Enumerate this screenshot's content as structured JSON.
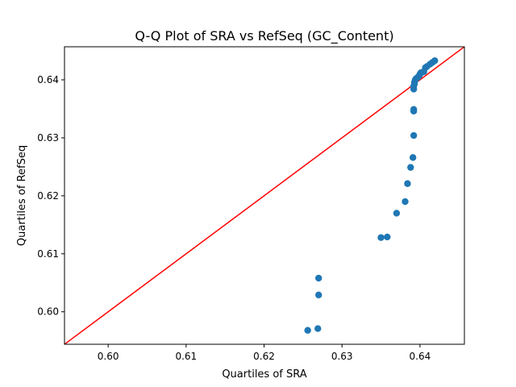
{
  "chart_data": {
    "type": "scatter",
    "title": "Q-Q Plot of SRA vs RefSeq (GC_Content)",
    "xlabel": "Quartiles of SRA",
    "ylabel": "Quartiles of RefSeq",
    "xlim": [
      0.5944,
      0.6457
    ],
    "ylim": [
      0.5944,
      0.6457
    ],
    "xticks": [
      0.6,
      0.61,
      0.62,
      0.63,
      0.64
    ],
    "yticks": [
      0.6,
      0.61,
      0.62,
      0.63,
      0.64
    ],
    "xtick_labels": [
      "0.60",
      "0.61",
      "0.62",
      "0.63",
      "0.64"
    ],
    "ytick_labels": [
      "0.60",
      "0.61",
      "0.62",
      "0.63",
      "0.64"
    ],
    "grid": false,
    "legend": "none",
    "point_color": "#1f77b4",
    "reference_line": {
      "type": "y=x",
      "color": "#ff0000"
    },
    "points": [
      {
        "x": 0.6256,
        "y": 0.5968
      },
      {
        "x": 0.6269,
        "y": 0.5971
      },
      {
        "x": 0.627,
        "y": 0.6029
      },
      {
        "x": 0.627,
        "y": 0.6058
      },
      {
        "x": 0.635,
        "y": 0.6128
      },
      {
        "x": 0.6358,
        "y": 0.6129
      },
      {
        "x": 0.637,
        "y": 0.617
      },
      {
        "x": 0.6381,
        "y": 0.619
      },
      {
        "x": 0.6384,
        "y": 0.6221
      },
      {
        "x": 0.6388,
        "y": 0.6249
      },
      {
        "x": 0.6391,
        "y": 0.6266
      },
      {
        "x": 0.6392,
        "y": 0.6304
      },
      {
        "x": 0.6392,
        "y": 0.6346
      },
      {
        "x": 0.6392,
        "y": 0.6349
      },
      {
        "x": 0.6392,
        "y": 0.6384
      },
      {
        "x": 0.6392,
        "y": 0.6389
      },
      {
        "x": 0.6393,
        "y": 0.6393
      },
      {
        "x": 0.6393,
        "y": 0.6396
      },
      {
        "x": 0.6394,
        "y": 0.64
      },
      {
        "x": 0.6395,
        "y": 0.6402
      },
      {
        "x": 0.6397,
        "y": 0.6404
      },
      {
        "x": 0.6399,
        "y": 0.6407
      },
      {
        "x": 0.64,
        "y": 0.641
      },
      {
        "x": 0.6401,
        "y": 0.6412
      },
      {
        "x": 0.6403,
        "y": 0.6413
      },
      {
        "x": 0.6405,
        "y": 0.6414
      },
      {
        "x": 0.6407,
        "y": 0.6421
      },
      {
        "x": 0.6409,
        "y": 0.6423
      },
      {
        "x": 0.6413,
        "y": 0.6427
      },
      {
        "x": 0.6416,
        "y": 0.643
      },
      {
        "x": 0.6419,
        "y": 0.6433
      }
    ]
  }
}
